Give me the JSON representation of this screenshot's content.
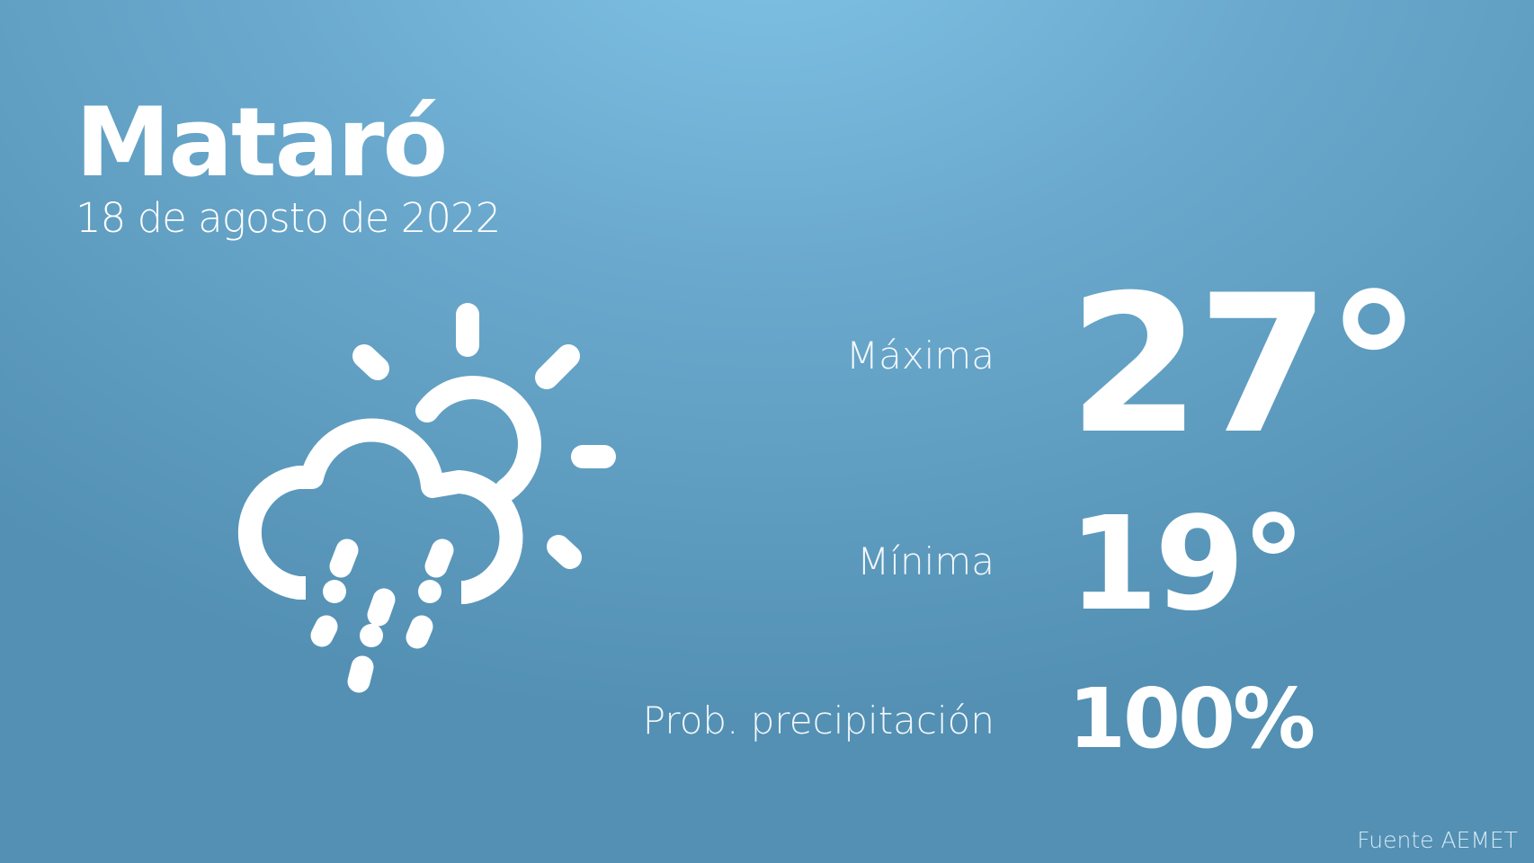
{
  "city": "Mataró",
  "date": "18 de agosto de 2022",
  "weather_icon": "sun-cloud-rain-hail-icon",
  "max": {
    "label": "Máxima",
    "value": "27°"
  },
  "min": {
    "label": "Mínima",
    "value": "19°"
  },
  "precip": {
    "label": "Prob. precipitación",
    "value": "100%"
  },
  "source": "Fuente AEMET",
  "colors": {
    "background_top": "#80c3e6",
    "background_bottom": "#5390b3",
    "text": "#ffffff"
  }
}
